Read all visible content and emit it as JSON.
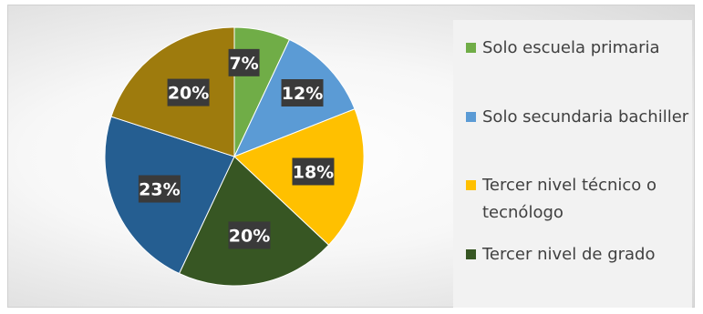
{
  "chart_data": {
    "type": "pie",
    "categories": [
      "Solo escuela primaria",
      "Solo secundaria bachiller",
      "Tercer nivel técnico o tecnólogo",
      "Tercer nivel de grado",
      "",
      ""
    ],
    "values": [
      7,
      12,
      18,
      20,
      23,
      20
    ],
    "data_labels": [
      "7%",
      "12%",
      "18%",
      "20%",
      "23%",
      "20%"
    ],
    "colors": [
      "#70ad47",
      "#5b9bd5",
      "#ffc000",
      "#375623",
      "#255e91",
      "#9e7b0d"
    ],
    "legend": [
      {
        "label": "Solo escuela primaria",
        "color": "#70ad47"
      },
      {
        "label": "Solo secundaria bachiller",
        "color": "#5b9bd5"
      },
      {
        "label": "Tercer nivel técnico o tecnólogo",
        "color": "#ffc000"
      },
      {
        "label": "Tercer nivel de grado",
        "color": "#375623"
      }
    ],
    "legend_position": "right"
  }
}
